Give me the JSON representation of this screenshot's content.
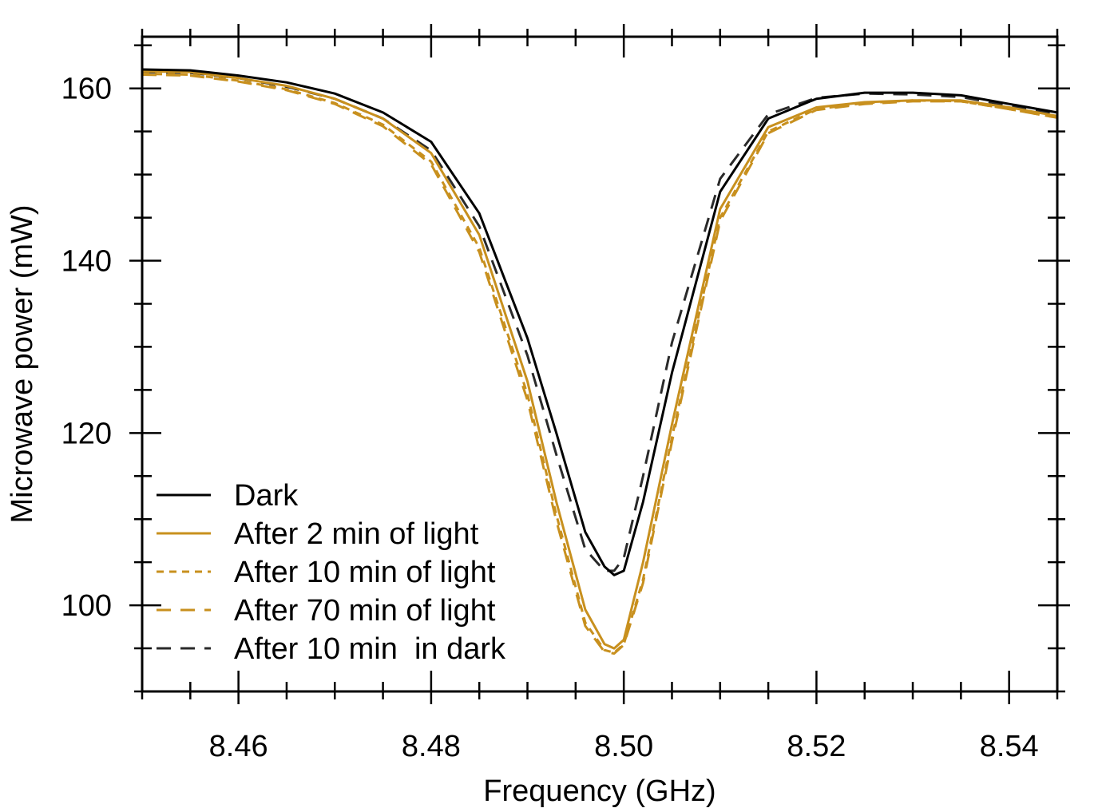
{
  "chart_data": {
    "type": "line",
    "title": "",
    "xlabel": "Frequency (GHz)",
    "ylabel": "Microwave power (mW)",
    "xlim": [
      8.45,
      8.545
    ],
    "ylim": [
      90,
      166
    ],
    "x_ticks": [
      8.46,
      8.48,
      8.5,
      8.52,
      8.54
    ],
    "x_tick_labels": [
      "8.46",
      "8.48",
      "8.50",
      "8.52",
      "8.54"
    ],
    "y_ticks": [
      100,
      120,
      140,
      160
    ],
    "y_tick_labels": [
      "100",
      "120",
      "140",
      "160"
    ],
    "grid": false,
    "legend_position": "bottom-left",
    "series": [
      {
        "name": "Dark",
        "color": "#000000",
        "dash": "solid",
        "x": [
          8.45,
          8.455,
          8.46,
          8.465,
          8.47,
          8.475,
          8.48,
          8.485,
          8.49,
          8.493,
          8.496,
          8.498,
          8.499,
          8.5,
          8.502,
          8.505,
          8.51,
          8.515,
          8.52,
          8.525,
          8.53,
          8.535,
          8.54,
          8.545
        ],
        "values": [
          162.2,
          162.1,
          161.5,
          160.7,
          159.4,
          157.2,
          153.8,
          145.5,
          131.0,
          120.0,
          108.5,
          104.5,
          103.5,
          104.0,
          112.0,
          127.0,
          148.0,
          156.5,
          158.8,
          159.5,
          159.5,
          159.2,
          158.2,
          157.2
        ]
      },
      {
        "name": "After 2 min of light",
        "color": "#C8901E",
        "dash": "solid",
        "x": [
          8.45,
          8.455,
          8.46,
          8.465,
          8.47,
          8.475,
          8.48,
          8.485,
          8.49,
          8.493,
          8.496,
          8.498,
          8.499,
          8.5,
          8.502,
          8.505,
          8.51,
          8.515,
          8.52,
          8.525,
          8.53,
          8.535,
          8.54,
          8.545
        ],
        "values": [
          162.0,
          161.9,
          161.2,
          160.3,
          158.8,
          156.5,
          152.5,
          143.0,
          126.0,
          112.0,
          99.5,
          95.5,
          95.0,
          96.0,
          105.0,
          121.0,
          146.0,
          155.5,
          157.8,
          158.4,
          158.6,
          158.6,
          157.8,
          156.8
        ]
      },
      {
        "name": "After 10 min of light",
        "color": "#C8901E",
        "dash": "short-dash",
        "x": [
          8.45,
          8.455,
          8.46,
          8.465,
          8.47,
          8.475,
          8.48,
          8.485,
          8.49,
          8.493,
          8.496,
          8.498,
          8.499,
          8.5,
          8.502,
          8.505,
          8.51,
          8.515,
          8.52,
          8.525,
          8.53,
          8.535,
          8.54,
          8.545
        ],
        "values": [
          161.7,
          161.6,
          160.9,
          159.9,
          158.3,
          155.8,
          151.5,
          141.5,
          124.5,
          110.5,
          98.0,
          94.8,
          94.5,
          95.5,
          103.0,
          119.5,
          145.0,
          155.0,
          157.6,
          158.3,
          158.6,
          158.5,
          157.6,
          156.6
        ]
      },
      {
        "name": "After 70 min of light",
        "color": "#C8901E",
        "dash": "long-dash",
        "x": [
          8.45,
          8.455,
          8.46,
          8.465,
          8.47,
          8.475,
          8.48,
          8.485,
          8.49,
          8.493,
          8.496,
          8.498,
          8.499,
          8.5,
          8.502,
          8.505,
          8.51,
          8.515,
          8.52,
          8.525,
          8.53,
          8.535,
          8.54,
          8.545
        ],
        "values": [
          161.6,
          161.5,
          160.8,
          159.8,
          158.2,
          155.6,
          151.2,
          141.0,
          123.8,
          109.8,
          97.6,
          94.6,
          94.4,
          95.4,
          102.6,
          119.0,
          144.6,
          154.8,
          157.5,
          158.2,
          158.5,
          158.5,
          157.6,
          156.6
        ]
      },
      {
        "name": "After 10 min  in dark",
        "color": "#2a2a2a",
        "dash": "long-dash",
        "x": [
          8.45,
          8.455,
          8.46,
          8.465,
          8.47,
          8.475,
          8.48,
          8.485,
          8.49,
          8.493,
          8.496,
          8.498,
          8.499,
          8.5,
          8.502,
          8.505,
          8.51,
          8.515,
          8.52,
          8.525,
          8.53,
          8.535,
          8.54,
          8.545
        ],
        "values": [
          161.9,
          161.8,
          161.2,
          160.2,
          158.8,
          156.5,
          152.8,
          144.0,
          129.0,
          117.5,
          106.5,
          104.0,
          104.0,
          105.5,
          115.0,
          130.5,
          149.5,
          157.0,
          158.9,
          159.4,
          159.3,
          159.0,
          158.0,
          157.0
        ]
      }
    ]
  }
}
